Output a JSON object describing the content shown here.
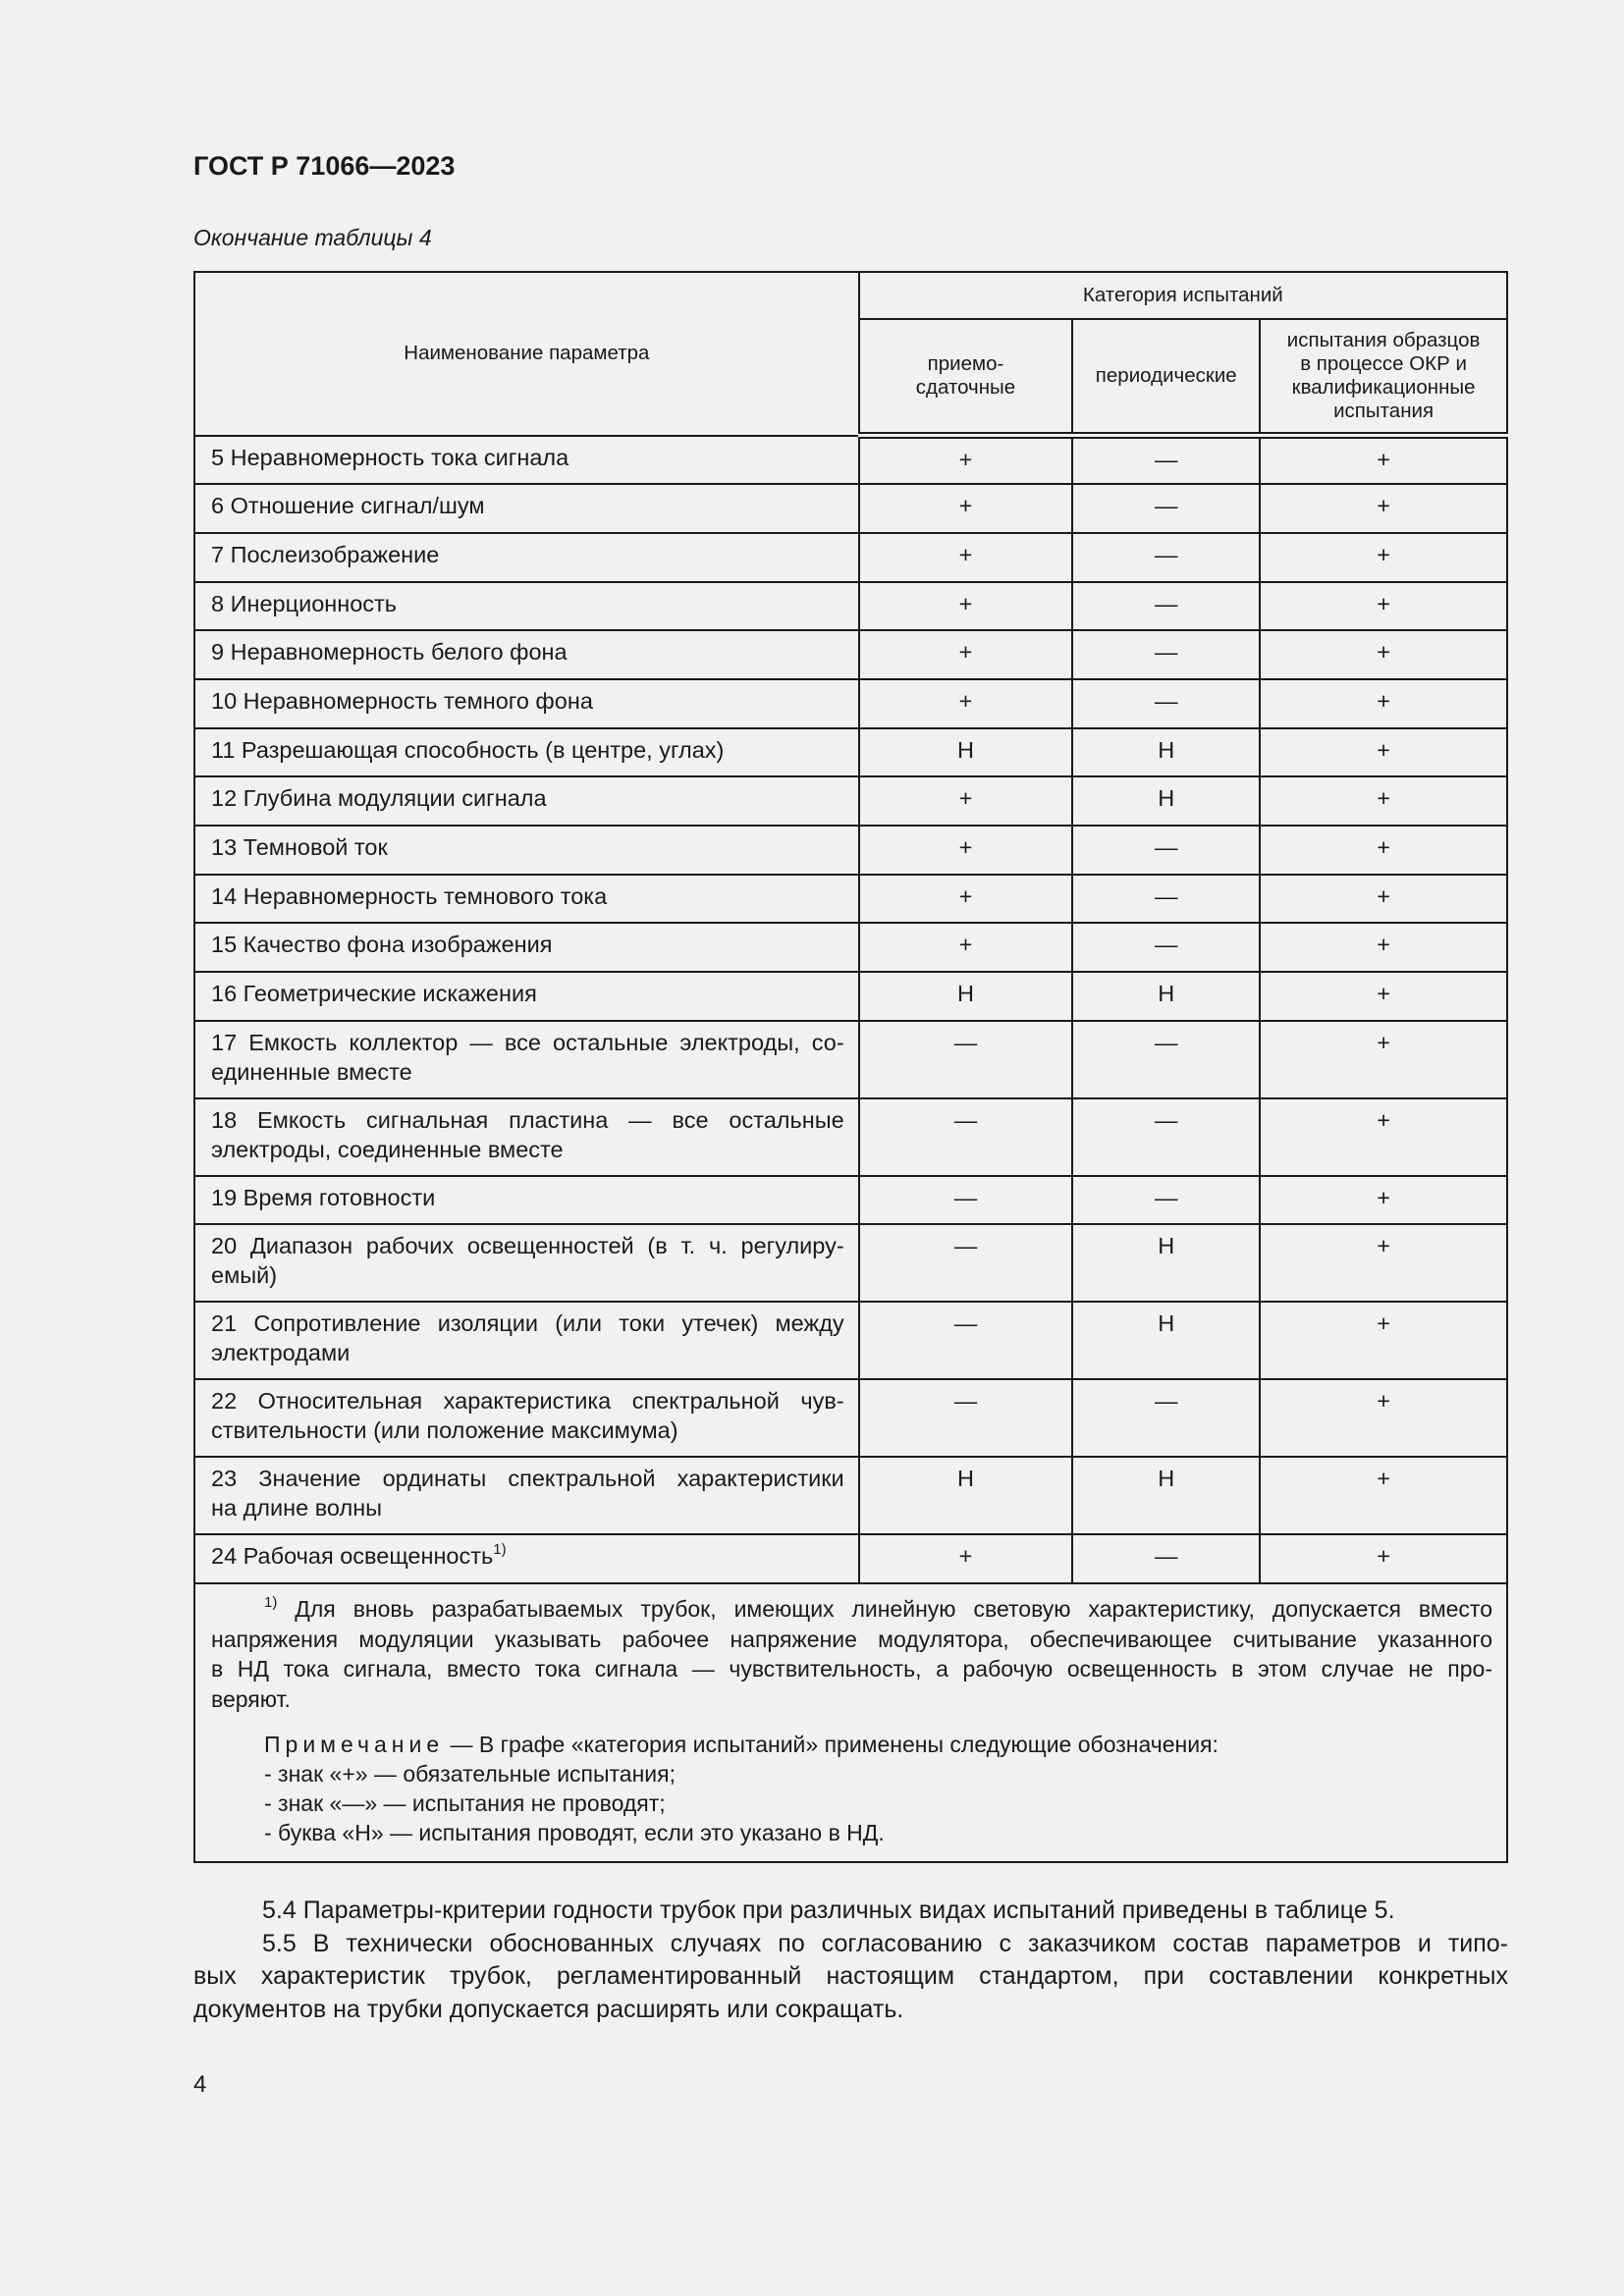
{
  "header": {
    "title": "ГОСТ Р 71066—2023"
  },
  "caption": "Окончание таблицы 4",
  "table": {
    "col_param": "Наименование параметра",
    "col_group": "Категория испытаний",
    "cols": [
      "приемо-\nсдаточные",
      "периодические",
      "испытания образцов\nв процессе ОКР и\nквалификационные\nиспытания"
    ],
    "rows": [
      {
        "name": [
          "5  Неравномерность тока сигнала"
        ],
        "v": [
          "+",
          "—",
          "+"
        ]
      },
      {
        "name": [
          "6  Отношение сигнал/шум"
        ],
        "v": [
          "+",
          "—",
          "+"
        ]
      },
      {
        "name": [
          "7  Послеизображение"
        ],
        "v": [
          "+",
          "—",
          "+"
        ]
      },
      {
        "name": [
          "8  Инерционность"
        ],
        "v": [
          "+",
          "—",
          "+"
        ]
      },
      {
        "name": [
          "9  Неравномерность белого фона"
        ],
        "v": [
          "+",
          "—",
          "+"
        ]
      },
      {
        "name": [
          "10  Неравномерность темного фона"
        ],
        "v": [
          "+",
          "—",
          "+"
        ]
      },
      {
        "name": [
          "11  Разрешающая способность (в центре, углах)"
        ],
        "v": [
          "Н",
          "Н",
          "+"
        ]
      },
      {
        "name": [
          "12  Глубина модуляции сигнала"
        ],
        "v": [
          "+",
          "Н",
          "+"
        ]
      },
      {
        "name": [
          "13  Темновой ток"
        ],
        "v": [
          "+",
          "—",
          "+"
        ]
      },
      {
        "name": [
          "14  Неравномерность темнового тока"
        ],
        "v": [
          "+",
          "—",
          "+"
        ]
      },
      {
        "name": [
          "15  Качество фона изображения"
        ],
        "v": [
          "+",
          "—",
          "+"
        ]
      },
      {
        "name": [
          "16  Геометрические искажения"
        ],
        "v": [
          "Н",
          "Н",
          "+"
        ]
      },
      {
        "name": [
          "17  Емкость коллектор — все остальные электроды, со-",
          "единенные вместе"
        ],
        "v": [
          "—",
          "—",
          "+"
        ]
      },
      {
        "name": [
          "18  Емкость сигнальная пластина — все остальные",
          "электроды, соединенные вместе"
        ],
        "v": [
          "—",
          "—",
          "+"
        ]
      },
      {
        "name": [
          "19  Время готовности"
        ],
        "v": [
          "—",
          "—",
          "+"
        ]
      },
      {
        "name": [
          "20  Диапазон рабочих освещенностей (в т. ч. регулиру-",
          "емый)"
        ],
        "v": [
          "—",
          "Н",
          "+"
        ]
      },
      {
        "name": [
          "21  Сопротивление изоляции (или токи утечек) между",
          "электродами"
        ],
        "v": [
          "—",
          "Н",
          "+"
        ]
      },
      {
        "name": [
          "22  Относительная характеристика спектральной чув-",
          "ствительности (или положение максимума)"
        ],
        "v": [
          "—",
          "—",
          "+"
        ]
      },
      {
        "name": [
          "23  Значение ординаты спектральной характеристики",
          "на длине волны"
        ],
        "v": [
          "Н",
          "Н",
          "+"
        ]
      },
      {
        "name": [
          "24  Рабочая освещенность"
        ],
        "sup": "1)",
        "v": [
          "+",
          "—",
          "+"
        ]
      }
    ],
    "footnote": {
      "mark": "1)",
      "lines": [
        " Для вновь разрабатываемых трубок, имеющих линейную световую характеристику, допускается вместо",
        "напряжения модуляции указывать рабочее напряжение модулятора, обеспечивающее считывание указанного",
        "в НД тока сигнала, вместо тока сигнала — чувствительность, а рабочую освещенность в этом случае не про-",
        "веряют."
      ]
    },
    "note": {
      "title": "Примечание",
      "text": " — В графе «категория испытаний» применены следующие обозначения:",
      "items": [
        "-  знак «+» — обязательные испытания;",
        "-  знак «—» — испытания не проводят;",
        "-  буква «Н» — испытания проводят, если это указано в НД."
      ]
    }
  },
  "paragraphs": [
    [
      "5.4 Параметры-критерии годности трубок при различных видах испытаний приведены в таблице 5."
    ],
    [
      "5.5  В технически обоснованных случаях по согласованию с заказчиком состав параметров и типо-",
      "вых характеристик трубок, регламентированный настоящим стандартом, при составлении конкретных",
      "документов на трубки допускается расширять или сокращать."
    ]
  ],
  "page_number": "4"
}
